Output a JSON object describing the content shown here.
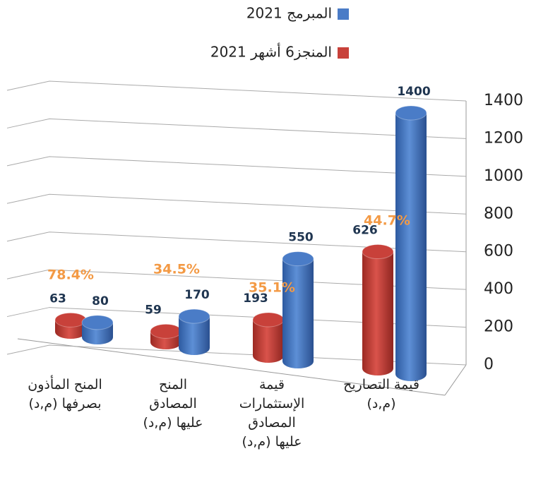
{
  "chart_data": {
    "type": "bar3d",
    "categories": [
      "المنح المأذون\nبصرفها (م,د)",
      "المنح\nالمصادق\nعليها (م,د)",
      "قيمة\nالإستثمارات\nالمصادق\nعليها (م,د)",
      "قيمة التصاريح\n(م,د)"
    ],
    "series": [
      {
        "name": "المنجز6 أشهر 2021",
        "color": "#c8413a",
        "values": [
          63,
          59,
          193,
          626
        ]
      },
      {
        "name": "المبرمج 2021",
        "color": "#4a7cc7",
        "values": [
          80,
          170,
          550,
          1400
        ]
      }
    ],
    "annotations": [
      "78.4%",
      "34.5%",
      "35.1%",
      "44.7%"
    ],
    "ylim": [
      0,
      1400
    ],
    "yticks": [
      0,
      200,
      400,
      600,
      800,
      1000,
      1200,
      1400
    ],
    "grid": true
  }
}
